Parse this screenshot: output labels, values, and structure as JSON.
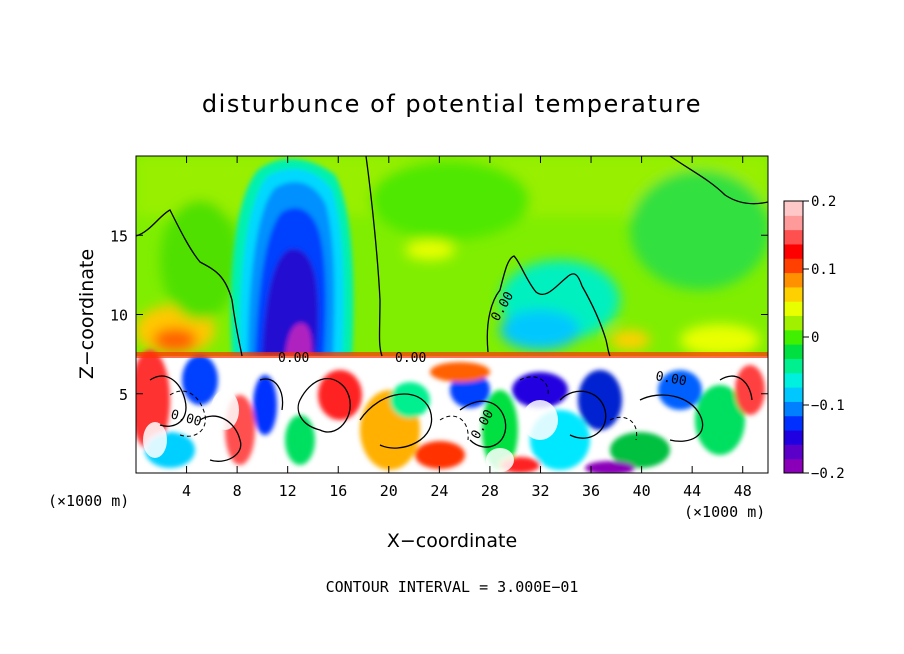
{
  "chart_data": {
    "type": "heatmap",
    "title": "disturbunce of potential temperature",
    "xlabel": "X−coordinate",
    "ylabel": "Z−coordinate",
    "x_unit_left": "(×1000 m)",
    "x_unit_right": "(×1000 m)",
    "xlim": [
      0,
      50
    ],
    "ylim": [
      0,
      20
    ],
    "x_ticks": [
      4,
      8,
      12,
      16,
      20,
      24,
      28,
      32,
      36,
      40,
      44,
      48
    ],
    "y_ticks": [
      5,
      10,
      15
    ],
    "colorbar": {
      "range": [
        -0.2,
        0.2
      ],
      "ticks": [
        0.2,
        0.1,
        0,
        -0.1,
        -0.2
      ],
      "tick_labels": [
        "0.2",
        "0.1",
        "0",
        "−0.1",
        "−0.2"
      ],
      "colors": [
        "#8a00b8",
        "#5a00c8",
        "#2000e0",
        "#0030ff",
        "#0080ff",
        "#00c8ff",
        "#00f0e0",
        "#00f090",
        "#00e040",
        "#40f000",
        "#a0f000",
        "#e8ff00",
        "#ffd000",
        "#ff9000",
        "#ff4000",
        "#ff0000",
        "#ff5050",
        "#ff9a9a",
        "#ffc8c8"
      ]
    },
    "contour_labels": [
      "0.00",
      "0.00",
      "0.00",
      "0.00",
      "0.00",
      "0.00"
    ],
    "footer": "CONTOUR INTERVAL = 3.000E−01",
    "fields": {
      "anomaly_negative_column": {
        "x_center": 12.5,
        "z_top": 19,
        "value": -0.19
      },
      "warm_pockets": [
        {
          "x": 4,
          "z": 9,
          "value": 0.12
        },
        {
          "x": 48,
          "z": 8,
          "value": 0.07
        }
      ],
      "inversion_height": 7.3,
      "background_value": 0.03
    }
  }
}
